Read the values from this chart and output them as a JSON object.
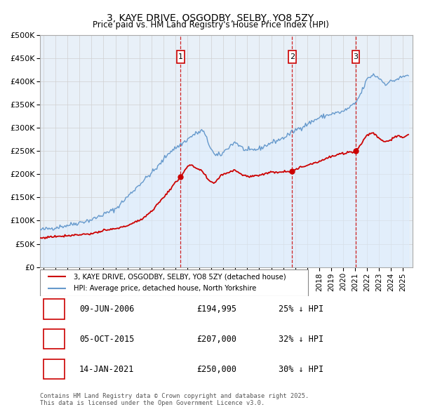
{
  "title": "3, KAYE DRIVE, OSGODBY, SELBY, YO8 5ZY",
  "subtitle": "Price paid vs. HM Land Registry's House Price Index (HPI)",
  "ylim": [
    0,
    500000
  ],
  "yticks": [
    0,
    50000,
    100000,
    150000,
    200000,
    250000,
    300000,
    350000,
    400000,
    450000,
    500000
  ],
  "ytick_labels": [
    "£0",
    "£50K",
    "£100K",
    "£150K",
    "£200K",
    "£250K",
    "£300K",
    "£350K",
    "£400K",
    "£450K",
    "£500K"
  ],
  "xlim_start": 1994.7,
  "xlim_end": 2025.8,
  "sales": [
    {
      "date_num": 2006.44,
      "price": 194995,
      "label": "1"
    },
    {
      "date_num": 2015.75,
      "price": 207000,
      "label": "2"
    },
    {
      "date_num": 2021.04,
      "price": 250000,
      "label": "3"
    }
  ],
  "sale_table": [
    {
      "num": "1",
      "date": "09-JUN-2006",
      "price": "£194,995",
      "pct": "25% ↓ HPI"
    },
    {
      "num": "2",
      "date": "05-OCT-2015",
      "price": "£207,000",
      "pct": "32% ↓ HPI"
    },
    {
      "num": "3",
      "date": "14-JAN-2021",
      "price": "£250,000",
      "pct": "30% ↓ HPI"
    }
  ],
  "line_color_red": "#cc0000",
  "line_color_blue": "#6699cc",
  "fill_color_blue": "#ddeeff",
  "vline_color": "#cc0000",
  "grid_color": "#d0d0d0",
  "plot_bg_color": "#e8f0f8",
  "background_color": "#ffffff",
  "legend_label_red": "3, KAYE DRIVE, OSGODBY, SELBY, YO8 5ZY (detached house)",
  "legend_label_blue": "HPI: Average price, detached house, North Yorkshire",
  "footer": "Contains HM Land Registry data © Crown copyright and database right 2025.\nThis data is licensed under the Open Government Licence v3.0.",
  "hpi_waypoints": [
    [
      1994.7,
      80000
    ],
    [
      1995.5,
      83000
    ],
    [
      1997.0,
      90000
    ],
    [
      1999.0,
      102000
    ],
    [
      2001.0,
      125000
    ],
    [
      2003.0,
      178000
    ],
    [
      2004.5,
      215000
    ],
    [
      2005.5,
      248000
    ],
    [
      2006.5,
      265000
    ],
    [
      2007.5,
      285000
    ],
    [
      2008.3,
      295000
    ],
    [
      2008.8,
      265000
    ],
    [
      2009.3,
      240000
    ],
    [
      2009.8,
      242000
    ],
    [
      2010.5,
      260000
    ],
    [
      2011.0,
      270000
    ],
    [
      2011.5,
      258000
    ],
    [
      2012.0,
      250000
    ],
    [
      2013.0,
      255000
    ],
    [
      2014.0,
      268000
    ],
    [
      2015.0,
      278000
    ],
    [
      2016.0,
      295000
    ],
    [
      2017.0,
      308000
    ],
    [
      2018.0,
      322000
    ],
    [
      2019.0,
      330000
    ],
    [
      2020.0,
      335000
    ],
    [
      2021.0,
      352000
    ],
    [
      2021.5,
      375000
    ],
    [
      2022.0,
      405000
    ],
    [
      2022.5,
      415000
    ],
    [
      2023.0,
      408000
    ],
    [
      2023.5,
      395000
    ],
    [
      2024.0,
      400000
    ],
    [
      2024.5,
      405000
    ],
    [
      2025.0,
      410000
    ],
    [
      2025.5,
      415000
    ]
  ],
  "red_waypoints": [
    [
      1994.7,
      62000
    ],
    [
      1995.5,
      65000
    ],
    [
      1997.0,
      68000
    ],
    [
      1998.0,
      70000
    ],
    [
      1999.0,
      72000
    ],
    [
      2000.0,
      78000
    ],
    [
      2001.5,
      85000
    ],
    [
      2003.0,
      100000
    ],
    [
      2004.0,
      120000
    ],
    [
      2005.0,
      150000
    ],
    [
      2005.8,
      175000
    ],
    [
      2006.44,
      194995
    ],
    [
      2006.8,
      210000
    ],
    [
      2007.2,
      220000
    ],
    [
      2007.6,
      215000
    ],
    [
      2008.3,
      205000
    ],
    [
      2008.8,
      185000
    ],
    [
      2009.3,
      182000
    ],
    [
      2009.8,
      198000
    ],
    [
      2010.5,
      205000
    ],
    [
      2011.0,
      210000
    ],
    [
      2011.5,
      200000
    ],
    [
      2012.0,
      195000
    ],
    [
      2013.0,
      198000
    ],
    [
      2013.5,
      202000
    ],
    [
      2014.0,
      204000
    ],
    [
      2014.5,
      205000
    ],
    [
      2015.0,
      206000
    ],
    [
      2015.75,
      207000
    ],
    [
      2016.5,
      215000
    ],
    [
      2017.0,
      220000
    ],
    [
      2018.0,
      228000
    ],
    [
      2019.0,
      238000
    ],
    [
      2020.0,
      245000
    ],
    [
      2021.04,
      250000
    ],
    [
      2021.5,
      265000
    ],
    [
      2022.0,
      285000
    ],
    [
      2022.5,
      290000
    ],
    [
      2023.0,
      278000
    ],
    [
      2023.5,
      270000
    ],
    [
      2024.0,
      275000
    ],
    [
      2024.5,
      282000
    ],
    [
      2025.0,
      280000
    ],
    [
      2025.5,
      285000
    ]
  ]
}
